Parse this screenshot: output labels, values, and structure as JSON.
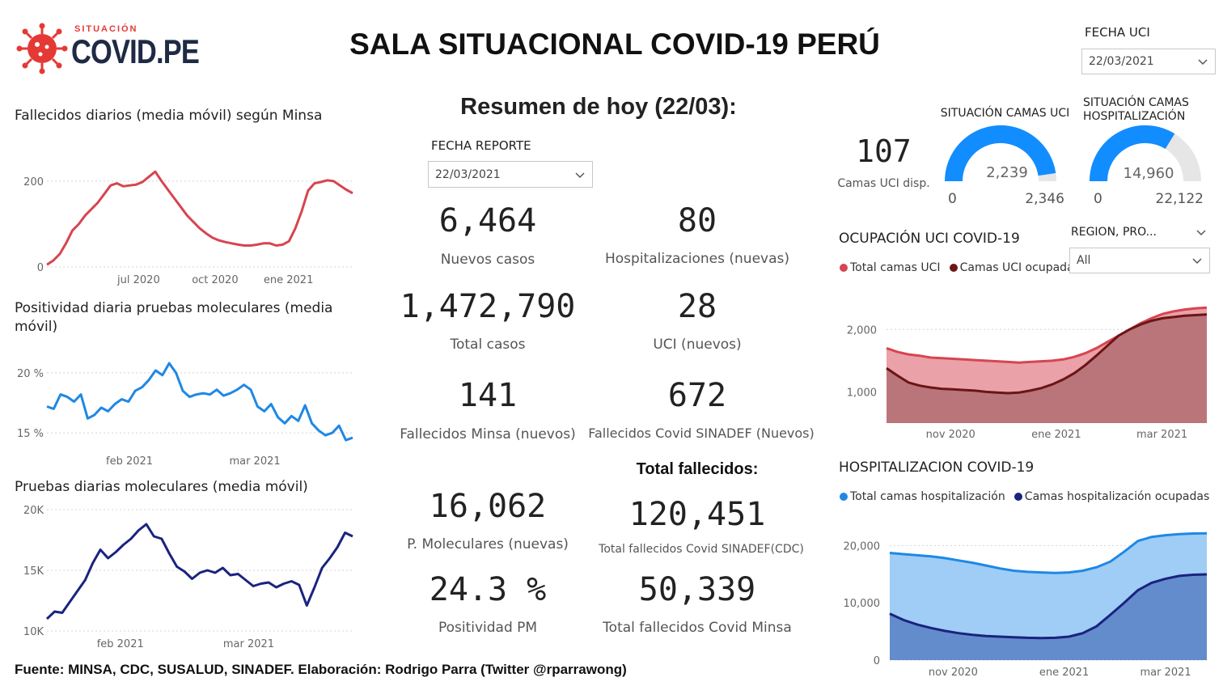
{
  "header": {
    "logo_small": "SITUACIÓN",
    "logo_big": "COVID.PE",
    "title": "SALA SITUACIONAL COVID-19 PERÚ"
  },
  "fecha_uci": {
    "label": "FECHA UCI",
    "value": "22/03/2021"
  },
  "resumen": {
    "title": "Resumen de hoy (22/03):",
    "fecha_reporte_label": "FECHA REPORTE",
    "fecha_reporte_value": "22/03/2021"
  },
  "kpis": {
    "nuevos_casos": {
      "value": "6,464",
      "label": "Nuevos casos"
    },
    "hospitalizaciones": {
      "value": "80",
      "label": "Hospitalizaciones (nuevas)"
    },
    "total_casos": {
      "value": "1,472,790",
      "label": "Total casos"
    },
    "uci": {
      "value": "28",
      "label": "UCI (nuevos)"
    },
    "fallecidos_minsa": {
      "value": "141",
      "label": "Fallecidos Minsa (nuevos)"
    },
    "fallecidos_sinadef": {
      "value": "672",
      "label": "Fallecidos Covid SINADEF (Nuevos)"
    },
    "total_fallecidos_title": "Total fallecidos:",
    "moleculares": {
      "value": "16,062",
      "label": "P. Moleculares (nuevas)"
    },
    "total_sinadef": {
      "value": "120,451",
      "label": "Total fallecidos Covid SINADEF(CDC)"
    },
    "positividad": {
      "value": "24.3 %",
      "label": "Positividad PM"
    },
    "total_minsa": {
      "value": "50,339",
      "label": "Total fallecidos Covid Minsa"
    }
  },
  "uci_disp": {
    "value": "107",
    "label": "Camas UCI disp."
  },
  "gauges": {
    "uci": {
      "title": "SITUACIÓN CAMAS UCI",
      "value": "2,239",
      "min": "0",
      "max": "2,346",
      "fraction": 0.954,
      "color": "#118dff"
    },
    "hosp": {
      "title_line1": "SITUACIÓN CAMAS",
      "title_line2": "HOSPITALIZACIÓN",
      "value": "14,960",
      "min": "0",
      "max": "22,122",
      "fraction": 0.676,
      "color": "#118dff"
    }
  },
  "region_filter": {
    "label": "REGION, PRO...",
    "value": "All"
  },
  "footer": {
    "text": "Fuente: MINSA, CDC, SUSALUD, SINADEF. Elaboración: Rodrigo Parra (Twitter @rparrawong)"
  },
  "chart_data": [
    {
      "id": "fallecidos",
      "type": "line",
      "title": "Fallecidos diarios (media móvil) según Minsa",
      "x_ticks": [
        {
          "label": "jul 2020",
          "t": 0.3
        },
        {
          "label": "oct 2020",
          "t": 0.55
        },
        {
          "label": "ene 2021",
          "t": 0.79
        }
      ],
      "y_ticks": [
        {
          "label": "0",
          "v": 0
        },
        {
          "label": "200",
          "v": 200
        }
      ],
      "ylim": [
        0,
        230
      ],
      "color": "#d64550",
      "values": [
        5,
        15,
        30,
        55,
        85,
        100,
        120,
        135,
        150,
        170,
        190,
        195,
        188,
        190,
        192,
        198,
        210,
        222,
        200,
        180,
        160,
        140,
        120,
        105,
        90,
        78,
        68,
        62,
        58,
        55,
        52,
        50,
        50,
        52,
        55,
        55,
        50,
        52,
        60,
        90,
        130,
        178,
        195,
        198,
        202,
        200,
        190,
        180,
        172
      ]
    },
    {
      "id": "positividad",
      "type": "line",
      "title": "Positividad diaria pruebas moleculares (media móvil)",
      "x_ticks": [
        {
          "label": "feb 2021",
          "t": 0.27
        },
        {
          "label": "mar 2021",
          "t": 0.68
        }
      ],
      "y_ticks": [
        {
          "label": "15 %",
          "v": 15
        },
        {
          "label": "20 %",
          "v": 20
        }
      ],
      "ylim": [
        14,
        21
      ],
      "color": "#1e88e5",
      "values": [
        17.2,
        17.0,
        18.2,
        18.0,
        17.6,
        18.2,
        16.2,
        16.5,
        17.1,
        16.8,
        17.4,
        17.8,
        17.6,
        18.5,
        18.8,
        19.4,
        20.2,
        19.8,
        20.8,
        20.0,
        18.5,
        18.0,
        18.2,
        18.3,
        18.2,
        18.6,
        18.1,
        18.3,
        18.6,
        19.0,
        18.6,
        17.2,
        16.8,
        17.4,
        16.3,
        15.8,
        16.4,
        16.0,
        17.3,
        15.8,
        15.2,
        14.8,
        15.0,
        15.6,
        14.4,
        14.6
      ]
    },
    {
      "id": "pruebas",
      "type": "line",
      "title": "Pruebas diarias moleculares (media móvil)",
      "x_ticks": [
        {
          "label": "feb 2021",
          "t": 0.24
        },
        {
          "label": "mar 2021",
          "t": 0.66
        }
      ],
      "y_ticks": [
        {
          "label": "10K",
          "v": 10000
        },
        {
          "label": "15K",
          "v": 15000
        },
        {
          "label": "20K",
          "v": 20000
        }
      ],
      "ylim": [
        10000,
        20000
      ],
      "color": "#1a237e",
      "values": [
        11000,
        11600,
        11500,
        12400,
        13300,
        14200,
        15600,
        16700,
        16000,
        16500,
        17100,
        17600,
        18300,
        18800,
        17800,
        17600,
        16400,
        15300,
        14900,
        14300,
        14800,
        15000,
        14800,
        15200,
        14600,
        14700,
        14200,
        13700,
        13900,
        14000,
        13600,
        13900,
        14100,
        13800,
        12100,
        13600,
        15200,
        16000,
        16900,
        18100,
        17800
      ]
    },
    {
      "id": "ocupacion_uci",
      "type": "area",
      "title": "OCUPACIÓN UCI COVID-19",
      "series": [
        {
          "name": "Total camas UCI",
          "color": "#d64550",
          "fill": "#eaa1a8",
          "values": [
            1700,
            1640,
            1600,
            1580,
            1550,
            1540,
            1530,
            1520,
            1510,
            1500,
            1490,
            1480,
            1470,
            1480,
            1490,
            1500,
            1520,
            1560,
            1620,
            1700,
            1800,
            1900,
            2000,
            2100,
            2180,
            2250,
            2290,
            2320,
            2340,
            2350
          ]
        },
        {
          "name": "Camas UCI ocupadas",
          "color": "#6b1515",
          "fill": "#b57075",
          "values": [
            1380,
            1260,
            1150,
            1100,
            1070,
            1050,
            1040,
            1030,
            1020,
            1000,
            990,
            980,
            990,
            1020,
            1060,
            1120,
            1200,
            1300,
            1430,
            1580,
            1740,
            1900,
            2000,
            2080,
            2140,
            2180,
            2200,
            2220,
            2230,
            2239
          ]
        }
      ],
      "x_ticks": [
        {
          "label": "nov 2020",
          "t": 0.2
        },
        {
          "label": "ene 2021",
          "t": 0.53
        },
        {
          "label": "mar 2021",
          "t": 0.86
        }
      ],
      "y_ticks": [
        {
          "label": "1,000",
          "v": 1000
        },
        {
          "label": "2,000",
          "v": 2000
        }
      ],
      "ylim": [
        500,
        2600
      ]
    },
    {
      "id": "hospitalizacion",
      "type": "area",
      "title": "HOSPITALIZACION COVID-19",
      "series": [
        {
          "name": "Total camas hospitalización",
          "color": "#1e88e5",
          "fill": "#9fcdf5",
          "values": [
            18700,
            18500,
            18300,
            18100,
            17800,
            17400,
            17000,
            16500,
            16000,
            15600,
            15400,
            15300,
            15200,
            15300,
            15600,
            16200,
            17200,
            18900,
            20800,
            21500,
            21800,
            22000,
            22100,
            22122
          ]
        },
        {
          "name": "Camas hospitalización ocupadas",
          "color": "#1a237e",
          "fill": "#5c85c9",
          "values": [
            8100,
            7000,
            6200,
            5600,
            5100,
            4700,
            4400,
            4200,
            4100,
            4000,
            3900,
            3850,
            3900,
            4100,
            4700,
            5900,
            7900,
            10000,
            12200,
            13500,
            14200,
            14700,
            14900,
            14960
          ]
        }
      ],
      "x_ticks": [
        {
          "label": "nov 2020",
          "t": 0.2
        },
        {
          "label": "ene 2021",
          "t": 0.55
        },
        {
          "label": "mar 2021",
          "t": 0.87
        }
      ],
      "y_ticks": [
        {
          "label": "0",
          "v": 0
        },
        {
          "label": "10,000",
          "v": 10000
        },
        {
          "label": "20,000",
          "v": 20000
        }
      ],
      "ylim": [
        0,
        24000
      ]
    }
  ]
}
